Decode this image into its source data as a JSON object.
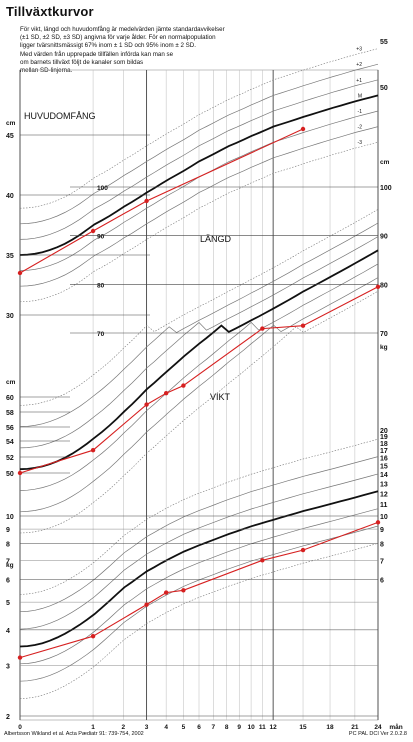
{
  "title": "Tillväxtkurvor",
  "intro": "För vikt, längd och huvudomfång är medelvärden jämte standardavvikelser\n(±1 SD, ±2 SD, ±3 SD) angivna för varje ålder. För en normalpopulation\nligger tvärsnittsmässigt 67% inom ± 1 SD och 95% inom ± 2 SD.\nMed värden från upprepade tillfällen införda kan man se\nom barnets tillväxt följt de kanaler som bildas\nmellan SD-linjerna.",
  "footer": {
    "citation": "Albertsson Wikland et al. Acta Pædiatr 91: 739-754, 2002",
    "version": "PC PAL DCI Ver 2.0.2.8"
  },
  "chart_data": {
    "type": "line",
    "xlabel": "mån",
    "x_ticks": [
      0,
      1,
      2,
      3,
      4,
      5,
      6,
      7,
      8,
      9,
      10,
      11,
      12,
      15,
      18,
      21,
      24
    ],
    "sd_labels": [
      "+3",
      "+2",
      "+1",
      "M",
      "-1",
      "-2",
      "-3"
    ],
    "panels": [
      {
        "name": "HUVUDOMFÅNG",
        "unit": "cm",
        "ticks": [
          30,
          35,
          40,
          45,
          50,
          55
        ],
        "mean": [
          [
            0,
            35.0
          ],
          [
            1,
            37.5
          ],
          [
            2,
            39.0
          ],
          [
            3,
            40.2
          ],
          [
            4,
            41.2
          ],
          [
            5,
            42.0
          ],
          [
            6,
            42.8
          ],
          [
            8,
            44.0
          ],
          [
            10,
            44.9
          ],
          [
            12,
            45.7
          ],
          [
            15,
            46.5
          ],
          [
            18,
            47.2
          ],
          [
            21,
            47.8
          ],
          [
            24,
            48.3
          ]
        ],
        "sd": 1.3,
        "child": [
          [
            0,
            33.5
          ],
          [
            1,
            37.0
          ],
          [
            3,
            39.5
          ],
          [
            15,
            45.5
          ]
        ]
      },
      {
        "name": "LÄNGD",
        "unit": "cm",
        "ticks": [
          70,
          80,
          90,
          100
        ],
        "mean": [
          [
            0,
            50.5
          ],
          [
            1,
            54.5
          ],
          [
            2,
            58.0
          ],
          [
            3,
            61.0
          ],
          [
            4,
            63.3
          ],
          [
            5,
            65.3
          ],
          [
            6,
            67.0
          ],
          [
            8,
            70.0
          ],
          [
            10,
            72.6
          ],
          [
            12,
            75.0
          ],
          [
            15,
            78.5
          ],
          [
            18,
            81.5
          ],
          [
            21,
            84.3
          ],
          [
            24,
            87.0
          ]
        ],
        "sd": 2.8,
        "child": [
          [
            0,
            50.0
          ],
          [
            1,
            53.0
          ],
          [
            3,
            59.0
          ],
          [
            4,
            60.5
          ],
          [
            5,
            61.5
          ],
          [
            11,
            69.0
          ],
          [
            15,
            71.5
          ],
          [
            24,
            79.5
          ]
        ]
      },
      {
        "name": "VIKT",
        "unit": "kg",
        "ticks": [
          2,
          3,
          4,
          5,
          6,
          7,
          8,
          9,
          10,
          11,
          12,
          13,
          14,
          15,
          16,
          17,
          18,
          19,
          20
        ],
        "mean": [
          [
            0,
            3.5
          ],
          [
            1,
            4.5
          ],
          [
            2,
            5.6
          ],
          [
            3,
            6.4
          ],
          [
            4,
            7.0
          ],
          [
            5,
            7.5
          ],
          [
            6,
            7.9
          ],
          [
            8,
            8.6
          ],
          [
            10,
            9.2
          ],
          [
            12,
            9.7
          ],
          [
            15,
            10.4
          ],
          [
            18,
            11.0
          ],
          [
            21,
            11.6
          ],
          [
            24,
            12.2
          ]
        ],
        "sd_factor": 1.15,
        "child": [
          [
            0,
            3.2
          ],
          [
            1,
            3.8
          ],
          [
            3,
            4.9
          ],
          [
            4,
            5.4
          ],
          [
            5,
            5.5
          ],
          [
            11,
            7.0
          ],
          [
            15,
            7.6
          ],
          [
            24,
            9.5
          ]
        ]
      }
    ]
  }
}
